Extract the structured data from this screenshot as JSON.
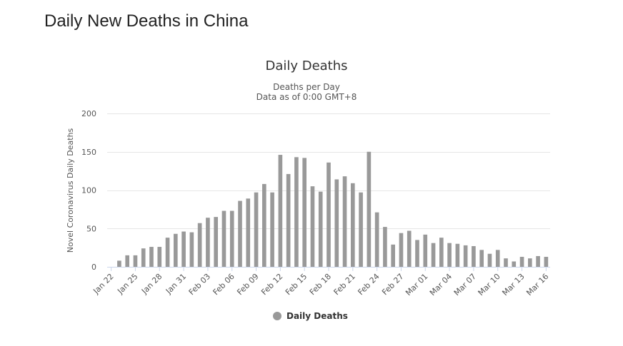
{
  "page": {
    "heading": "Daily New Deaths in China"
  },
  "chart_data": {
    "type": "bar",
    "title": "Daily Deaths",
    "subtitle_line1": "Deaths per Day",
    "subtitle_line2": "Data as of 0:00 GMT+8",
    "xlabel": "",
    "ylabel": "Novel Coronavirus Daily Deaths",
    "ylim": [
      0,
      200
    ],
    "yticks": [
      0,
      50,
      100,
      150,
      200
    ],
    "grid": true,
    "legend_position": "bottom-center",
    "color": "#999999",
    "categories": [
      "Jan 22",
      "Jan 23",
      "Jan 24",
      "Jan 25",
      "Jan 26",
      "Jan 27",
      "Jan 28",
      "Jan 29",
      "Jan 30",
      "Jan 31",
      "Feb 01",
      "Feb 02",
      "Feb 03",
      "Feb 04",
      "Feb 05",
      "Feb 06",
      "Feb 07",
      "Feb 08",
      "Feb 09",
      "Feb 10",
      "Feb 11",
      "Feb 12",
      "Feb 13",
      "Feb 14",
      "Feb 15",
      "Feb 16",
      "Feb 17",
      "Feb 18",
      "Feb 19",
      "Feb 20",
      "Feb 21",
      "Feb 22",
      "Feb 23",
      "Feb 24",
      "Feb 25",
      "Feb 26",
      "Feb 27",
      "Feb 28",
      "Feb 29",
      "Mar 01",
      "Mar 02",
      "Mar 03",
      "Mar 04",
      "Mar 05",
      "Mar 06",
      "Mar 07",
      "Mar 08",
      "Mar 09",
      "Mar 10",
      "Mar 11",
      "Mar 12",
      "Mar 13",
      "Mar 14",
      "Mar 15",
      "Mar 16"
    ],
    "tick_labels": [
      "Jan 22",
      "Jan 25",
      "Jan 28",
      "Jan 31",
      "Feb 03",
      "Feb 06",
      "Feb 09",
      "Feb 12",
      "Feb 15",
      "Feb 18",
      "Feb 21",
      "Feb 24",
      "Feb 27",
      "Mar 01",
      "Mar 04",
      "Mar 07",
      "Mar 10",
      "Mar 13",
      "Mar 16"
    ],
    "series": [
      {
        "name": "Daily Deaths",
        "values": [
          0,
          8,
          15,
          15,
          24,
          26,
          26,
          38,
          43,
          46,
          45,
          57,
          64,
          65,
          73,
          73,
          86,
          89,
          97,
          108,
          97,
          146,
          121,
          143,
          142,
          105,
          98,
          136,
          114,
          118,
          109,
          97,
          150,
          71,
          52,
          29,
          44,
          47,
          35,
          42,
          31,
          38,
          31,
          30,
          28,
          27,
          22,
          17,
          22,
          11,
          7,
          13,
          11,
          14,
          13
        ]
      }
    ]
  }
}
